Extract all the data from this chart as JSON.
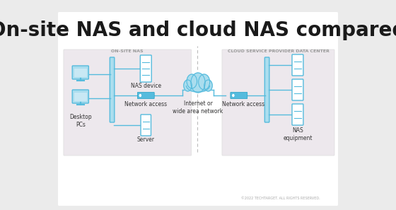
{
  "title": "On-site NAS and cloud NAS compared",
  "title_fontsize": 20,
  "title_color": "#1a1a1a",
  "bg_color": "#ebebeb",
  "panel_bg": "#ffffff",
  "section_left_label": "ON-SITE NAS",
  "section_right_label": "CLOUD SERVICE PROVIDER DATA CENTER",
  "section_label_color": "#999999",
  "section_bg_left": "#ede8ed",
  "section_bg_right": "#ede8ed",
  "blue_light": "#aaddee",
  "blue_medium": "#55bbdd",
  "blue_dark": "#1e9fc4",
  "line_color": "#55bbdd",
  "dashed_line_color": "#bbbbbb",
  "text_color": "#333333",
  "footer_text": "©2022 TECHTARGET. ALL RIGHTS RESERVED.",
  "footer_color": "#aaaaaa"
}
